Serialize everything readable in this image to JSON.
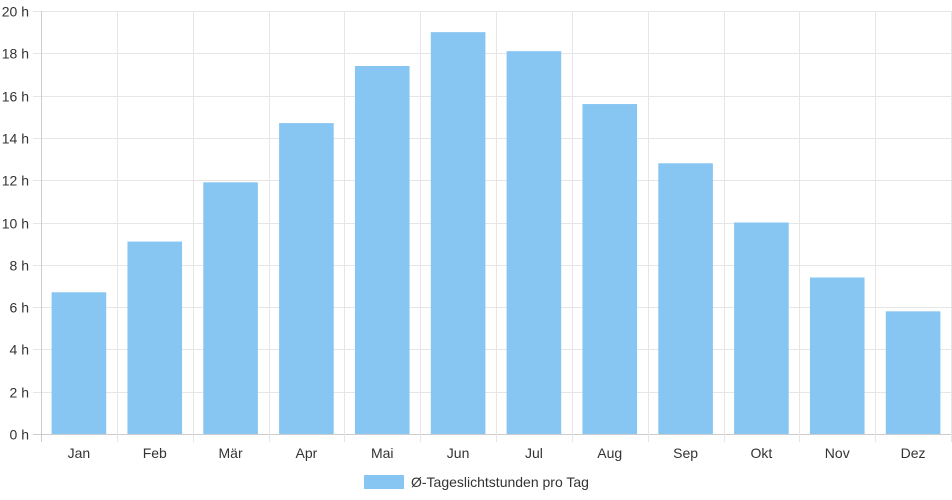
{
  "chart_data": {
    "type": "bar",
    "categories": [
      "Jan",
      "Feb",
      "Mär",
      "Apr",
      "Mai",
      "Jun",
      "Jul",
      "Aug",
      "Sep",
      "Okt",
      "Nov",
      "Dez"
    ],
    "series": [
      {
        "name": "Ø-Tageslichtstunden pro Tag",
        "values": [
          6.7,
          9.1,
          11.9,
          14.7,
          17.4,
          19.0,
          18.1,
          15.6,
          12.8,
          10.0,
          7.4,
          5.8
        ]
      }
    ],
    "y_ticks": [
      "0 h",
      "2 h",
      "4 h",
      "6 h",
      "8 h",
      "10 h",
      "12 h",
      "14 h",
      "16 h",
      "18 h",
      "20 h"
    ],
    "ylim": [
      0,
      20
    ],
    "grid": true,
    "legend_position": "bottom",
    "colors": {
      "bar": "#87c5f2",
      "grid": "#e6e6e6",
      "axis": "#cccccc",
      "text": "#333333"
    }
  }
}
